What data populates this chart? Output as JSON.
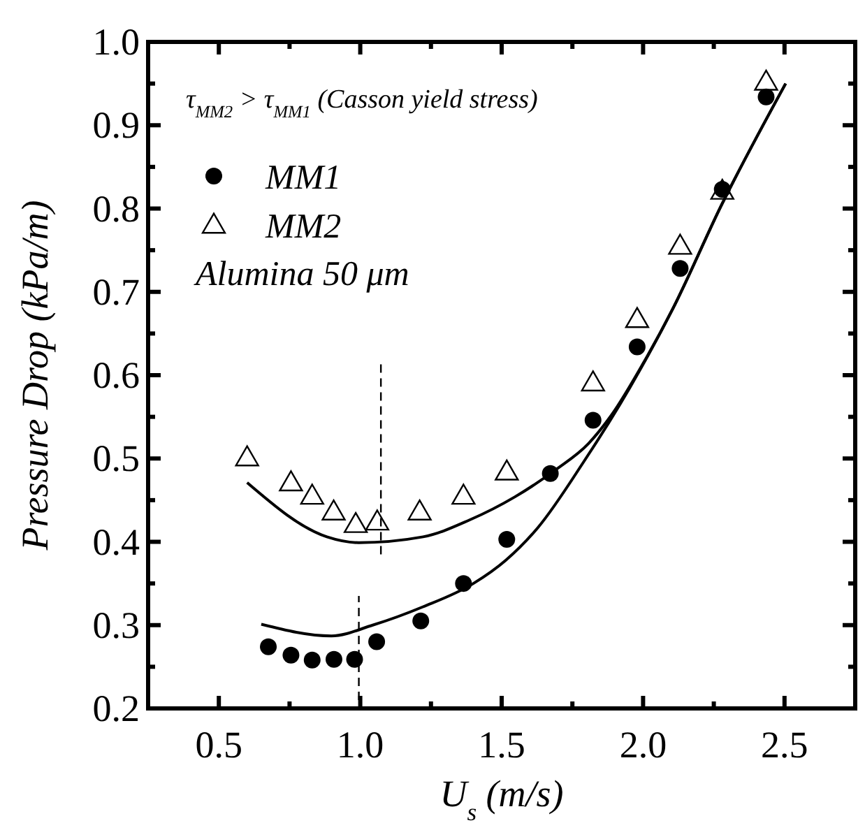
{
  "chart_data": {
    "type": "scatter",
    "xlabel": "U$_{s}$ (m/s)",
    "ylabel": "Pressure Drop (kPa/m)",
    "annotations": [
      "τ$_{MM2}$ > τ$_{MM1}$ (Casson yield stress)",
      "Alumina 50 μm"
    ],
    "xlim": [
      0.25,
      2.75
    ],
    "ylim": [
      0.2,
      1.0
    ],
    "xticks": [
      {
        "value": 0.25,
        "label": null
      },
      {
        "value": 0.5,
        "label": "0.5"
      },
      {
        "value": 0.75,
        "label": null
      },
      {
        "value": 1.0,
        "label": "1.0"
      },
      {
        "value": 1.25,
        "label": null
      },
      {
        "value": 1.5,
        "label": "1.5"
      },
      {
        "value": 1.75,
        "label": null
      },
      {
        "value": 2.0,
        "label": "2.0"
      },
      {
        "value": 2.25,
        "label": null
      },
      {
        "value": 2.5,
        "label": "2.5"
      }
    ],
    "yticks": [
      {
        "value": 0.2,
        "label": "0.2"
      },
      {
        "value": 0.25,
        "label": null
      },
      {
        "value": 0.3,
        "label": "0.3"
      },
      {
        "value": 0.35,
        "label": null
      },
      {
        "value": 0.4,
        "label": "0.4"
      },
      {
        "value": 0.45,
        "label": null
      },
      {
        "value": 0.5,
        "label": "0.5"
      },
      {
        "value": 0.55,
        "label": null
      },
      {
        "value": 0.6,
        "label": "0.6"
      },
      {
        "value": 0.65,
        "label": null
      },
      {
        "value": 0.7,
        "label": "0.7"
      },
      {
        "value": 0.75,
        "label": null
      },
      {
        "value": 0.8,
        "label": "0.8"
      },
      {
        "value": 0.85,
        "label": null
      },
      {
        "value": 0.9,
        "label": "0.9"
      },
      {
        "value": 0.95,
        "label": null
      },
      {
        "value": 1.0,
        "label": "1.0"
      }
    ],
    "grid": false,
    "legend": "top left",
    "series": [
      {
        "name": "MM1",
        "marker": "circle",
        "color": "#000000",
        "x": [
          0.675,
          0.755,
          0.83,
          0.907,
          0.98,
          1.058,
          1.214,
          1.365,
          1.518,
          1.672,
          1.823,
          1.979,
          2.131,
          2.28,
          2.435
        ],
        "values": [
          0.274,
          0.264,
          0.258,
          0.259,
          0.259,
          0.28,
          0.305,
          0.35,
          0.403,
          0.482,
          0.546,
          0.634,
          0.728,
          0.823,
          0.934
        ]
      },
      {
        "name": "MM2",
        "marker": "triangle",
        "color": "#000000",
        "x": [
          0.6,
          0.755,
          0.83,
          0.906,
          0.984,
          1.06,
          1.21,
          1.365,
          1.518,
          1.823,
          1.979,
          2.131,
          2.28,
          2.435
        ],
        "values": [
          0.501,
          0.471,
          0.455,
          0.436,
          0.421,
          0.424,
          0.436,
          0.455,
          0.484,
          0.591,
          0.667,
          0.755,
          0.821,
          0.952
        ]
      },
      {
        "type": "line",
        "marker": "none",
        "line_style": "solid",
        "color": "#000000",
        "x": [
          0.65,
          0.898,
          1.044,
          1.222,
          1.4,
          1.515,
          1.628,
          1.79,
          1.953,
          2.107,
          2.277,
          2.504
        ],
        "values": [
          0.301,
          0.287,
          0.3,
          0.322,
          0.35,
          0.378,
          0.417,
          0.496,
          0.585,
          0.681,
          0.804,
          0.95
        ]
      },
      {
        "type": "line",
        "marker": "none",
        "line_style": "solid",
        "color": "#000000",
        "x": [
          0.6,
          0.882,
          0.995,
          1.222,
          1.385,
          1.547,
          1.693,
          1.807,
          1.888,
          2.0,
          2.107,
          2.277,
          2.504
        ],
        "values": [
          0.471,
          0.406,
          0.399,
          0.406,
          0.426,
          0.454,
          0.487,
          0.518,
          0.552,
          0.614,
          0.681,
          0.804,
          0.95
        ]
      },
      {
        "type": "line",
        "marker": "none",
        "line_style": "dashed",
        "color": "#000000",
        "x": [
          0.995,
          0.995
        ],
        "values": [
          0.21,
          0.335
        ]
      },
      {
        "type": "line",
        "marker": "none",
        "line_style": "dashed",
        "color": "#000000",
        "x": [
          1.073,
          1.073
        ],
        "values": [
          0.385,
          0.614
        ]
      }
    ]
  }
}
